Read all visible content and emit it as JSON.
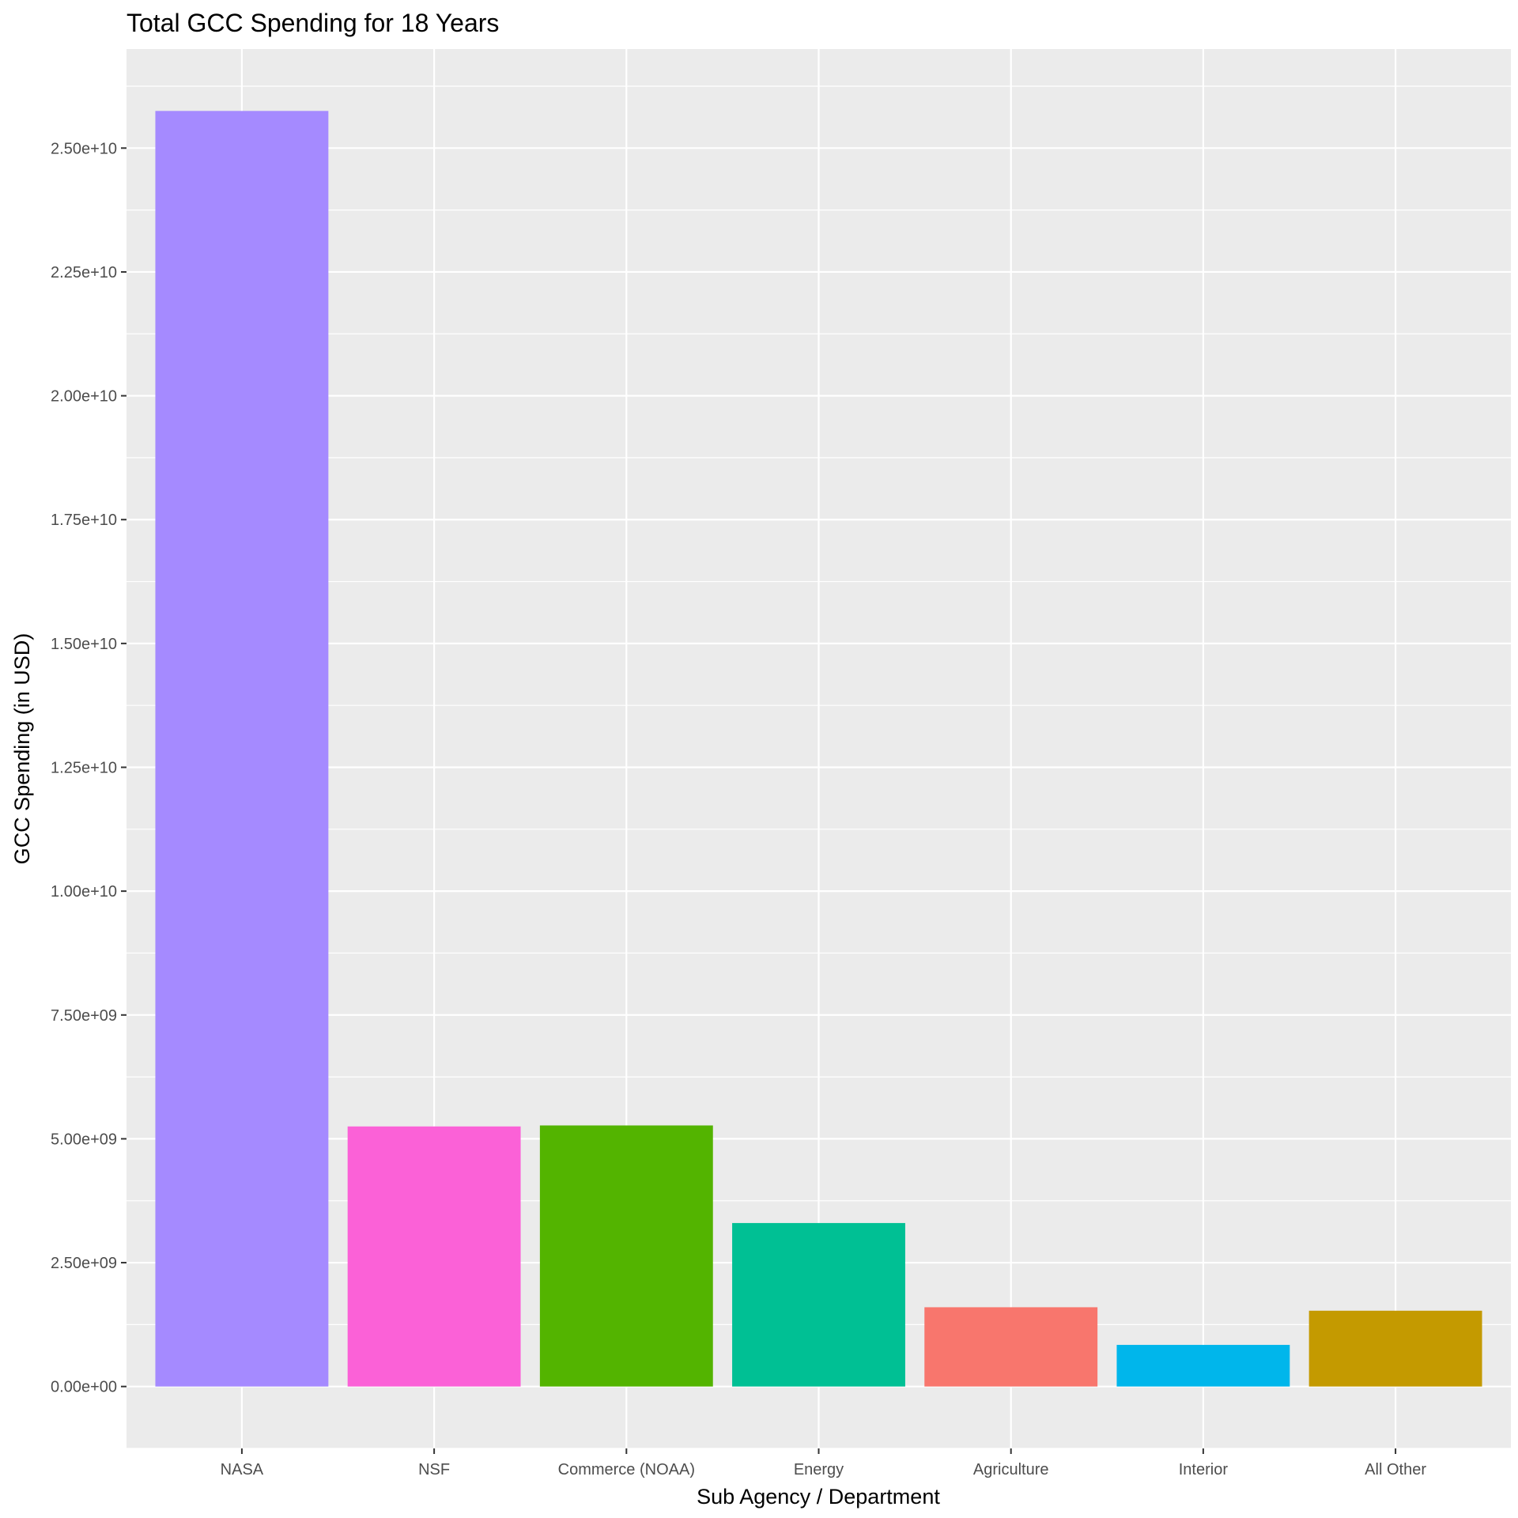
{
  "chart_data": {
    "type": "bar",
    "title": "Total GCC Spending for 18 Years",
    "xlabel": "Sub Agency / Department",
    "ylabel": "GCC Spending (in USD)",
    "categories": [
      "NASA",
      "NSF",
      "Commerce (NOAA)",
      "Energy",
      "Agriculture",
      "Interior",
      "All Other"
    ],
    "values": [
      25750000000,
      5250000000,
      5270000000,
      3300000000,
      1600000000,
      840000000,
      1530000000
    ],
    "colors": [
      "#A58AFF",
      "#FB61D7",
      "#53B400",
      "#00C094",
      "#F8766D",
      "#00B6EB",
      "#C49A00"
    ],
    "ylim": [
      -1250000000,
      27000000000
    ],
    "yticks": [
      0,
      2500000000,
      5000000000,
      7500000000,
      10000000000,
      12500000000,
      15000000000,
      17500000000,
      20000000000,
      22500000000,
      25000000000
    ],
    "ytick_labels": [
      "0.00e+00",
      "2.50e+09",
      "5.00e+09",
      "7.50e+09",
      "1.00e+10",
      "1.25e+10",
      "1.50e+10",
      "1.75e+10",
      "2.00e+10",
      "2.25e+10",
      "2.50e+10"
    ],
    "panel_background": "#EBEBEB",
    "grid_color": "#FFFFFF",
    "grid": true,
    "legend": "none"
  }
}
